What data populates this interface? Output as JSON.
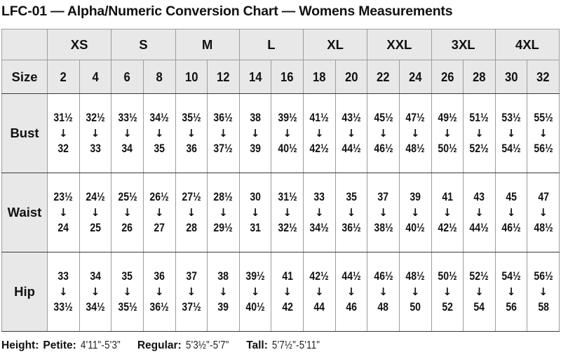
{
  "title": "LFC-01 — Alpha/Numeric Conversion Chart — Womens Measurements",
  "chart_data": {
    "type": "table",
    "title": "LFC-01 — Alpha/Numeric Conversion Chart — Womens Measurements",
    "columns_label": "Size",
    "alpha_sizes": [
      "XS",
      "S",
      "M",
      "L",
      "XL",
      "XXL",
      "3XL",
      "4XL"
    ],
    "numeric_sizes": [
      "2",
      "4",
      "6",
      "8",
      "10",
      "12",
      "14",
      "16",
      "18",
      "20",
      "22",
      "24",
      "26",
      "28",
      "30",
      "32"
    ],
    "rows": [
      {
        "label": "Bust",
        "cells": [
          {
            "from": "31½",
            "to": "32"
          },
          {
            "from": "32½",
            "to": "33"
          },
          {
            "from": "33½",
            "to": "34"
          },
          {
            "from": "34½",
            "to": "35"
          },
          {
            "from": "35½",
            "to": "36"
          },
          {
            "from": "36½",
            "to": "37½"
          },
          {
            "from": "38",
            "to": "39"
          },
          {
            "from": "39½",
            "to": "40½"
          },
          {
            "from": "41½",
            "to": "42½"
          },
          {
            "from": "43½",
            "to": "44½"
          },
          {
            "from": "45½",
            "to": "46½"
          },
          {
            "from": "47½",
            "to": "48½"
          },
          {
            "from": "49½",
            "to": "50½"
          },
          {
            "from": "51½",
            "to": "52½"
          },
          {
            "from": "53½",
            "to": "54½"
          },
          {
            "from": "55½",
            "to": "56½"
          }
        ]
      },
      {
        "label": "Waist",
        "cells": [
          {
            "from": "23½",
            "to": "24"
          },
          {
            "from": "24½",
            "to": "25"
          },
          {
            "from": "25½",
            "to": "26"
          },
          {
            "from": "26½",
            "to": "27"
          },
          {
            "from": "27½",
            "to": "28"
          },
          {
            "from": "28½",
            "to": "29½"
          },
          {
            "from": "30",
            "to": "31"
          },
          {
            "from": "31½",
            "to": "32½"
          },
          {
            "from": "33",
            "to": "34½"
          },
          {
            "from": "35",
            "to": "36½"
          },
          {
            "from": "37",
            "to": "38½"
          },
          {
            "from": "39",
            "to": "40½"
          },
          {
            "from": "41",
            "to": "42½"
          },
          {
            "from": "43",
            "to": "44½"
          },
          {
            "from": "45",
            "to": "46½"
          },
          {
            "from": "47",
            "to": "48½"
          }
        ]
      },
      {
        "label": "Hip",
        "cells": [
          {
            "from": "33",
            "to": "33½"
          },
          {
            "from": "34",
            "to": "34½"
          },
          {
            "from": "35",
            "to": "35½"
          },
          {
            "from": "36",
            "to": "36½"
          },
          {
            "from": "37",
            "to": "37½"
          },
          {
            "from": "38",
            "to": "39"
          },
          {
            "from": "39½",
            "to": "40½"
          },
          {
            "from": "41",
            "to": "42"
          },
          {
            "from": "42½",
            "to": "44"
          },
          {
            "from": "44½",
            "to": "46"
          },
          {
            "from": "46½",
            "to": "48"
          },
          {
            "from": "48½",
            "to": "50"
          },
          {
            "from": "50½",
            "to": "52"
          },
          {
            "from": "52½",
            "to": "54"
          },
          {
            "from": "54½",
            "to": "56"
          },
          {
            "from": "56½",
            "to": "58"
          }
        ]
      }
    ]
  },
  "footer": {
    "height_label": "Height:",
    "petite_label": "Petite:",
    "petite_value": "4'11\"-5'3\"",
    "regular_label": "Regular:",
    "regular_value": "5'3½\"-5'7\"",
    "tall_label": "Tall:",
    "tall_value": "5'7½\"-5'11\""
  },
  "icons": {
    "range_arrow": "↓"
  },
  "colors": {
    "header_bg": "#e8e8e8",
    "border_strong": "#3a3a3a",
    "border_light": "#9d9d9d",
    "text": "#111111"
  }
}
